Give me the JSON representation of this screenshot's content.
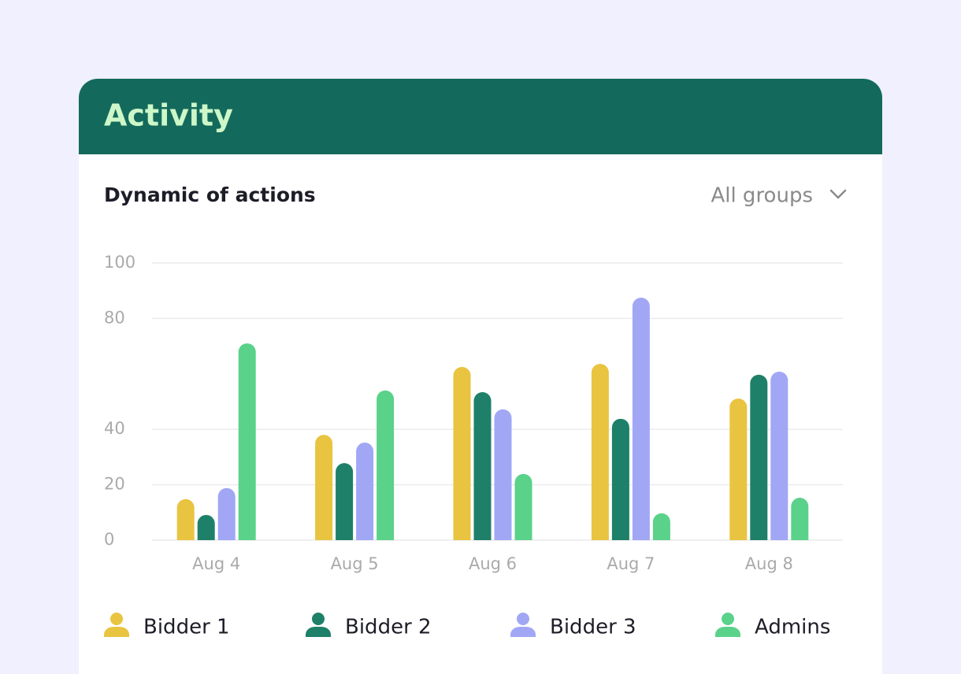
{
  "header": {
    "title": "Activity"
  },
  "chart_data": {
    "type": "bar",
    "title": "Dynamic of actions",
    "filter": "All groups",
    "categories": [
      "Aug 4",
      "Aug 5",
      "Aug 6",
      "Aug 7",
      "Aug 8"
    ],
    "series": [
      {
        "name": "Bidder 1",
        "color": "#e8c440",
        "values": [
          14.8,
          38,
          62.5,
          63.6,
          51.1
        ]
      },
      {
        "name": "Bidder 2",
        "color": "#1e8068",
        "values": [
          9.1,
          27.8,
          53.4,
          43.8,
          59.7
        ]
      },
      {
        "name": "Bidder 3",
        "color": "#a1a7f5",
        "values": [
          18.8,
          35.2,
          47.2,
          87.5,
          60.8
        ]
      },
      {
        "name": "Admins",
        "color": "#5bd28a",
        "values": [
          71,
          54,
          23.9,
          9.7,
          15.3
        ]
      }
    ],
    "ylim": [
      0,
      100
    ],
    "yticks": [
      0,
      20,
      40,
      80,
      100
    ],
    "grid": true
  }
}
